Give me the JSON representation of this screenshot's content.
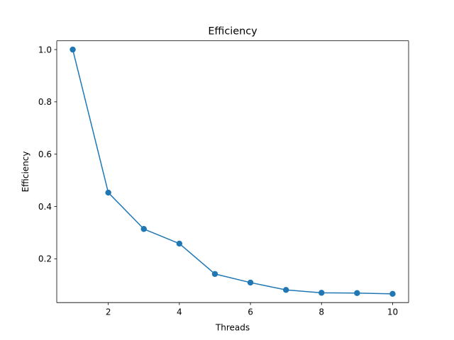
{
  "chart_data": {
    "type": "line",
    "title": "Efficiency",
    "xlabel": "Threads",
    "ylabel": "Efficiency",
    "xlim": [
      0.55,
      10.45
    ],
    "ylim": [
      0.0325,
      1.0335
    ],
    "xticks": [
      2,
      4,
      6,
      8,
      10
    ],
    "xtick_labels": [
      "2",
      "4",
      "6",
      "8",
      "10"
    ],
    "yticks": [
      0.2,
      0.4,
      0.6,
      0.8,
      1.0
    ],
    "ytick_labels": [
      "0.2",
      "0.4",
      "0.6",
      "0.8",
      "1.0"
    ],
    "grid": false,
    "series": [
      {
        "color": "#1f77b4",
        "marker": "circle",
        "x": [
          1,
          2,
          3,
          4,
          5,
          6,
          7,
          8,
          9,
          10
        ],
        "y": [
          1.0,
          0.453,
          0.314,
          0.258,
          0.142,
          0.109,
          0.081,
          0.07,
          0.069,
          0.066
        ]
      }
    ]
  }
}
